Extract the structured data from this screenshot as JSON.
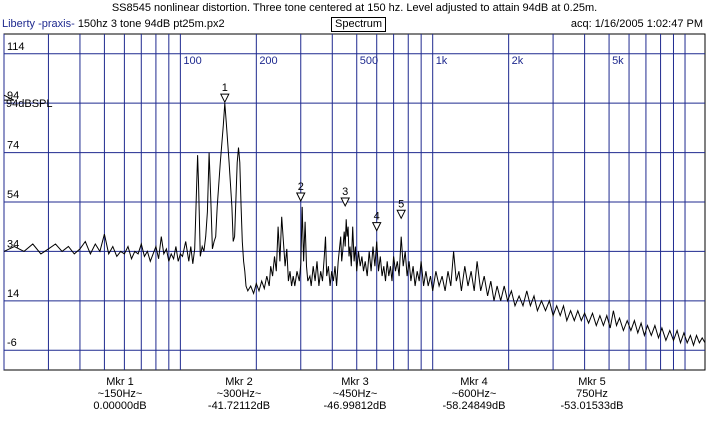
{
  "title": "SS8545 nonlinear distortion. Three tone centered at 150 hz.  Level adjusted to attain 94dB at 0.25m.",
  "header": {
    "app": "Liberty -praxis-",
    "file": "150hz 3 tone 94dB pt25m.px2",
    "view": "Spectrum",
    "acq": "acq: 1/16/2005 1:02:47 PM"
  },
  "colors": {
    "grid": "#1f2a8f",
    "trace": "#000000",
    "background": "#ffffff"
  },
  "chart_data": {
    "type": "line",
    "x_scale": "log",
    "xlim": [
      20,
      12000
    ],
    "ylim": [
      -14,
      122
    ],
    "x_tick_labels": [
      {
        "v": 100,
        "t": "100"
      },
      {
        "v": 200,
        "t": "200"
      },
      {
        "v": 500,
        "t": "500"
      },
      {
        "v": 1000,
        "t": "1k"
      },
      {
        "v": 2000,
        "t": "2k"
      },
      {
        "v": 5000,
        "t": "5k"
      }
    ],
    "y_ticks": [
      114,
      94,
      74,
      54,
      34,
      14,
      -6
    ],
    "reference_label": "94dBSPL",
    "reference_level": 94,
    "series": [
      {
        "points": [
          [
            20,
            34
          ],
          [
            22,
            36
          ],
          [
            24,
            34
          ],
          [
            26,
            37
          ],
          [
            28,
            33
          ],
          [
            30,
            35
          ],
          [
            32,
            37
          ],
          [
            34,
            34
          ],
          [
            36,
            36
          ],
          [
            38,
            33
          ],
          [
            40,
            35
          ],
          [
            42,
            38
          ],
          [
            44,
            33
          ],
          [
            46,
            37
          ],
          [
            48,
            34
          ],
          [
            50,
            41
          ],
          [
            52,
            33
          ],
          [
            54,
            36
          ],
          [
            56,
            32
          ],
          [
            58,
            34
          ],
          [
            60,
            33
          ],
          [
            62,
            36
          ],
          [
            64,
            31
          ],
          [
            66,
            34
          ],
          [
            68,
            33
          ],
          [
            70,
            37
          ],
          [
            72,
            32
          ],
          [
            74,
            34
          ],
          [
            76,
            30
          ],
          [
            78,
            33
          ],
          [
            80,
            36
          ],
          [
            82,
            31
          ],
          [
            84,
            40
          ],
          [
            86,
            33
          ],
          [
            88,
            35
          ],
          [
            90,
            30
          ],
          [
            92,
            33
          ],
          [
            94,
            31
          ],
          [
            96,
            36
          ],
          [
            98,
            30
          ],
          [
            100,
            33
          ],
          [
            102,
            32
          ],
          [
            105,
            38
          ],
          [
            108,
            30
          ],
          [
            110,
            36
          ],
          [
            112,
            29
          ],
          [
            114,
            35
          ],
          [
            116,
            60
          ],
          [
            117,
            73
          ],
          [
            118,
            62
          ],
          [
            120,
            32
          ],
          [
            122,
            36
          ],
          [
            124,
            34
          ],
          [
            126,
            40
          ],
          [
            128,
            50
          ],
          [
            130,
            74
          ],
          [
            132,
            55
          ],
          [
            134,
            35
          ],
          [
            136,
            38
          ],
          [
            138,
            40
          ],
          [
            140,
            52
          ],
          [
            144,
            70
          ],
          [
            148,
            85
          ],
          [
            150,
            94
          ],
          [
            152,
            86
          ],
          [
            156,
            70
          ],
          [
            160,
            52
          ],
          [
            162,
            38
          ],
          [
            164,
            40
          ],
          [
            166,
            55
          ],
          [
            168,
            70
          ],
          [
            170,
            76
          ],
          [
            172,
            70
          ],
          [
            174,
            52
          ],
          [
            176,
            38
          ],
          [
            178,
            30
          ],
          [
            180,
            26
          ],
          [
            182,
            20
          ],
          [
            185,
            18
          ],
          [
            190,
            20
          ],
          [
            195,
            17
          ],
          [
            200,
            21
          ],
          [
            205,
            18
          ],
          [
            210,
            22
          ],
          [
            215,
            19
          ],
          [
            220,
            24
          ],
          [
            225,
            20
          ],
          [
            228,
            28
          ],
          [
            232,
            24
          ],
          [
            236,
            32
          ],
          [
            240,
            26
          ],
          [
            244,
            44
          ],
          [
            248,
            30
          ],
          [
            252,
            48
          ],
          [
            256,
            38
          ],
          [
            260,
            28
          ],
          [
            264,
            35
          ],
          [
            268,
            22
          ],
          [
            272,
            26
          ],
          [
            276,
            20
          ],
          [
            280,
            24
          ],
          [
            284,
            20
          ],
          [
            290,
            26
          ],
          [
            296,
            22
          ],
          [
            300,
            29
          ],
          [
            304,
            52
          ],
          [
            308,
            30
          ],
          [
            312,
            46
          ],
          [
            316,
            28
          ],
          [
            320,
            22
          ],
          [
            326,
            24
          ],
          [
            330,
            20
          ],
          [
            336,
            28
          ],
          [
            342,
            22
          ],
          [
            348,
            30
          ],
          [
            354,
            20
          ],
          [
            360,
            26
          ],
          [
            366,
            22
          ],
          [
            372,
            32
          ],
          [
            376,
            40
          ],
          [
            380,
            24
          ],
          [
            386,
            28
          ],
          [
            392,
            20
          ],
          [
            398,
            26
          ],
          [
            404,
            22
          ],
          [
            410,
            28
          ],
          [
            416,
            20
          ],
          [
            422,
            30
          ],
          [
            428,
            36
          ],
          [
            432,
            40
          ],
          [
            436,
            30
          ],
          [
            440,
            34
          ],
          [
            446,
            42
          ],
          [
            450,
            36
          ],
          [
            454,
            47
          ],
          [
            458,
            40
          ],
          [
            462,
            44
          ],
          [
            466,
            32
          ],
          [
            470,
            36
          ],
          [
            476,
            28
          ],
          [
            482,
            44
          ],
          [
            488,
            30
          ],
          [
            494,
            36
          ],
          [
            500,
            26
          ],
          [
            508,
            34
          ],
          [
            516,
            28
          ],
          [
            524,
            32
          ],
          [
            532,
            26
          ],
          [
            540,
            30
          ],
          [
            550,
            24
          ],
          [
            560,
            34
          ],
          [
            570,
            26
          ],
          [
            580,
            36
          ],
          [
            590,
            28
          ],
          [
            600,
            38
          ],
          [
            610,
            26
          ],
          [
            620,
            32
          ],
          [
            630,
            24
          ],
          [
            640,
            28
          ],
          [
            650,
            22
          ],
          [
            660,
            30
          ],
          [
            670,
            24
          ],
          [
            680,
            28
          ],
          [
            690,
            22
          ],
          [
            700,
            32
          ],
          [
            712,
            26
          ],
          [
            724,
            30
          ],
          [
            736,
            24
          ],
          [
            750,
            40
          ],
          [
            764,
            28
          ],
          [
            778,
            34
          ],
          [
            792,
            24
          ],
          [
            806,
            30
          ],
          [
            820,
            22
          ],
          [
            836,
            28
          ],
          [
            852,
            20
          ],
          [
            868,
            26
          ],
          [
            884,
            22
          ],
          [
            900,
            30
          ],
          [
            920,
            20
          ],
          [
            940,
            26
          ],
          [
            960,
            20
          ],
          [
            980,
            24
          ],
          [
            1000,
            18
          ],
          [
            1030,
            26
          ],
          [
            1060,
            20
          ],
          [
            1090,
            24
          ],
          [
            1120,
            18
          ],
          [
            1150,
            26
          ],
          [
            1180,
            20
          ],
          [
            1210,
            34
          ],
          [
            1240,
            22
          ],
          [
            1270,
            26
          ],
          [
            1300,
            18
          ],
          [
            1340,
            28
          ],
          [
            1380,
            20
          ],
          [
            1420,
            26
          ],
          [
            1460,
            18
          ],
          [
            1500,
            30
          ],
          [
            1550,
            18
          ],
          [
            1600,
            24
          ],
          [
            1650,
            16
          ],
          [
            1700,
            22
          ],
          [
            1750,
            14
          ],
          [
            1800,
            20
          ],
          [
            1860,
            14
          ],
          [
            1920,
            20
          ],
          [
            1980,
            14
          ],
          [
            2050,
            18
          ],
          [
            2120,
            12
          ],
          [
            2200,
            16
          ],
          [
            2280,
            12
          ],
          [
            2360,
            18
          ],
          [
            2440,
            12
          ],
          [
            2520,
            16
          ],
          [
            2600,
            10
          ],
          [
            2700,
            14
          ],
          [
            2800,
            10
          ],
          [
            2900,
            14
          ],
          [
            3000,
            8
          ],
          [
            3100,
            12
          ],
          [
            3200,
            8
          ],
          [
            3300,
            12
          ],
          [
            3400,
            6
          ],
          [
            3520,
            10
          ],
          [
            3640,
            6
          ],
          [
            3760,
            10
          ],
          [
            3880,
            6
          ],
          [
            4000,
            9
          ],
          [
            4150,
            5
          ],
          [
            4300,
            9
          ],
          [
            4450,
            4
          ],
          [
            4600,
            8
          ],
          [
            4750,
            4
          ],
          [
            4900,
            8
          ],
          [
            5050,
            3
          ],
          [
            5200,
            10
          ],
          [
            5350,
            4
          ],
          [
            5500,
            7
          ],
          [
            5700,
            2
          ],
          [
            5900,
            6
          ],
          [
            6100,
            2
          ],
          [
            6300,
            6
          ],
          [
            6500,
            1
          ],
          [
            6700,
            5
          ],
          [
            6900,
            0
          ],
          [
            7100,
            4
          ],
          [
            7350,
            0
          ],
          [
            7600,
            4
          ],
          [
            7850,
            -1
          ],
          [
            8100,
            3
          ],
          [
            8400,
            -2
          ],
          [
            8700,
            2
          ],
          [
            9000,
            -2
          ],
          [
            9300,
            2
          ],
          [
            9600,
            -3
          ],
          [
            9900,
            1
          ],
          [
            10200,
            -3
          ],
          [
            10500,
            0
          ],
          [
            10800,
            -4
          ],
          [
            11100,
            0
          ],
          [
            11400,
            -3
          ],
          [
            11700,
            -1
          ],
          [
            12000,
            -3
          ]
        ]
      }
    ],
    "markers": [
      {
        "n": "1",
        "f": 150,
        "db": 94
      },
      {
        "n": "2",
        "f": 300,
        "db": 54
      },
      {
        "n": "3",
        "f": 450,
        "db": 52
      },
      {
        "n": "4",
        "f": 600,
        "db": 42
      },
      {
        "n": "5",
        "f": 750,
        "db": 47
      }
    ]
  },
  "marker_readouts": [
    {
      "name": "Mkr 1",
      "freq": "~150Hz~",
      "value": "0.00000dB"
    },
    {
      "name": "Mkr 2",
      "freq": "~300Hz~",
      "value": "-41.72112dB"
    },
    {
      "name": "Mkr 3",
      "freq": "~450Hz~",
      "value": "-46.99812dB"
    },
    {
      "name": "Mkr 4",
      "freq": "~600Hz~",
      "value": "-58.24849dB"
    },
    {
      "name": "Mkr 5",
      "freq": "750Hz",
      "value": "-53.01533dB"
    }
  ]
}
